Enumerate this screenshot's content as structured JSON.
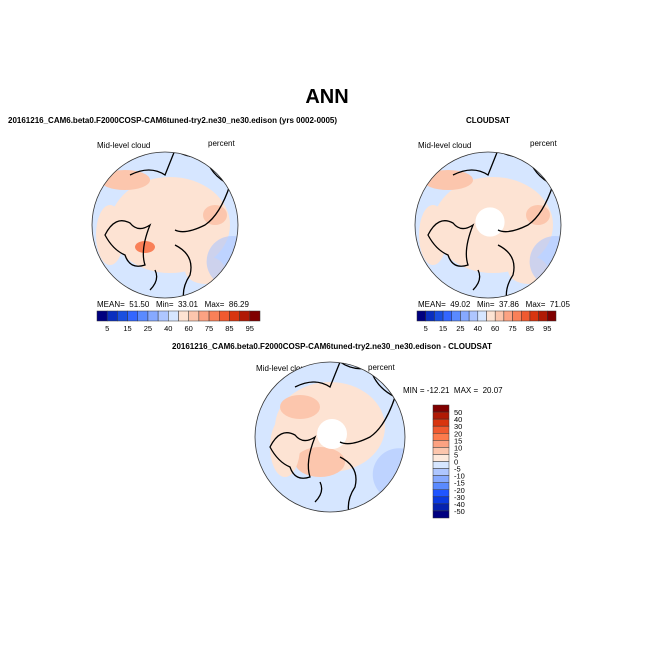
{
  "title": "ANN",
  "panels": {
    "left_title": "20161216_CAM6.beta0.F2000COSP-CAM6tuned-try2.ne30_ne30.edison (yrs 0002-0005)",
    "right_title": "CLOUDSAT",
    "diff_title": "20161216_CAM6.beta0.F2000COSP-CAM6tuned-try2.ne30_ne30.edison - CLOUDSAT",
    "variable": "Mid-level cloud",
    "units": "percent"
  },
  "chart_data": [
    {
      "type": "heatmap",
      "projection": "north-polar-stereographic",
      "title": "20161216_CAM6.beta0.F2000COSP-CAM6tuned-try2.ne30_ne30.edison (yrs 0002-0005)",
      "variable": "Mid-level cloud",
      "units": "percent",
      "stats": {
        "mean_label": "MEAN=",
        "mean": "51.50",
        "min_label": "Min=",
        "min": "33.01",
        "max_label": "Max=",
        "max": "86.29"
      },
      "colorbar_labels": [
        "5",
        "15",
        "25",
        "40",
        "60",
        "75",
        "85",
        "95"
      ]
    },
    {
      "type": "heatmap",
      "projection": "north-polar-stereographic",
      "title": "CLOUDSAT",
      "variable": "Mid-level cloud",
      "units": "percent",
      "stats": {
        "mean_label": "MEAN=",
        "mean": "49.02",
        "min_label": "Min=",
        "min": "37.86",
        "max_label": "Max=",
        "max": "71.05"
      },
      "colorbar_labels": [
        "5",
        "15",
        "25",
        "40",
        "60",
        "75",
        "85",
        "95"
      ]
    },
    {
      "type": "heatmap",
      "projection": "north-polar-stereographic",
      "title": "20161216_CAM6.beta0.F2000COSP-CAM6tuned-try2.ne30_ne30.edison - CLOUDSAT",
      "variable": "Mid-level cloud",
      "units": "percent",
      "stats_text": "MIN = -12.21  MAX =  20.07",
      "colorbar_labels": [
        "50",
        "40",
        "30",
        "20",
        "15",
        "10",
        "5",
        "0",
        "-5",
        "-10",
        "-15",
        "-20",
        "-30",
        "-40",
        "-50"
      ]
    }
  ],
  "colors": {
    "seq": [
      "#000080",
      "#0a2fbf",
      "#1a4fe0",
      "#3366ff",
      "#5a8aff",
      "#86a9ff",
      "#aec6ff",
      "#d6e6ff",
      "#fde3d3",
      "#fcc6ad",
      "#fca282",
      "#f98058",
      "#f05a30",
      "#d8350f",
      "#b01a05",
      "#800000"
    ],
    "div": [
      "#800000",
      "#b01a05",
      "#d8350f",
      "#f05a30",
      "#fc7b4d",
      "#fca282",
      "#fcc6ad",
      "#fde9dc",
      "#d6e6ff",
      "#aec6ff",
      "#86a9ff",
      "#5a8aff",
      "#1f55ff",
      "#0a3ae0",
      "#0522b0",
      "#000080"
    ]
  }
}
